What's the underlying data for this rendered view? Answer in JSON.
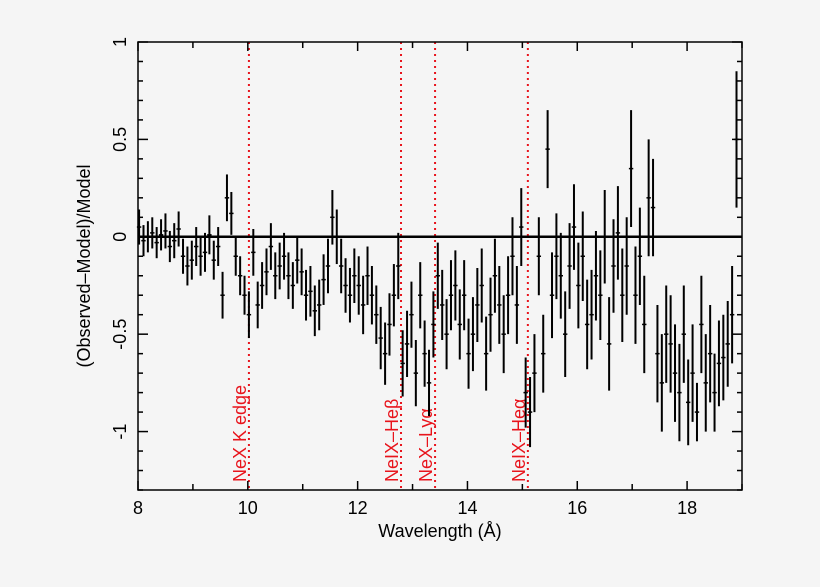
{
  "chart_data": {
    "type": "scatter",
    "title": "",
    "xlabel": "Wavelength (Å)",
    "ylabel": "(Observed–Model)/Model",
    "xlim": [
      8,
      19
    ],
    "ylim": [
      -1.3,
      1
    ],
    "xticks": [
      8,
      10,
      12,
      14,
      16,
      18
    ],
    "yticks": [
      1,
      0.5,
      0,
      -0.5,
      -1
    ],
    "grid": false,
    "reference_line_y": 0,
    "colors": {
      "points": "#000000",
      "annotations": "#e8141c",
      "background": "#f5f5f5"
    },
    "annotations": [
      {
        "x": 10.02,
        "label": "NeX K edge"
      },
      {
        "x": 12.79,
        "label": "NeIX–Heβ"
      },
      {
        "x": 13.41,
        "label": "NeX–Lyα"
      },
      {
        "x": 15.1,
        "label": "NeIX–Heα"
      }
    ],
    "points_format": [
      "wavelength",
      "residual",
      "error"
    ],
    "points": [
      [
        8.02,
        0.05,
        0.09
      ],
      [
        8.1,
        -0.02,
        0.08
      ],
      [
        8.18,
        0.0,
        0.08
      ],
      [
        8.26,
        0.02,
        0.08
      ],
      [
        8.34,
        -0.03,
        0.08
      ],
      [
        8.42,
        0.01,
        0.08
      ],
      [
        8.5,
        0.03,
        0.09
      ],
      [
        8.58,
        -0.05,
        0.08
      ],
      [
        8.66,
        -0.02,
        0.09
      ],
      [
        8.74,
        0.04,
        0.09
      ],
      [
        8.82,
        -0.1,
        0.09
      ],
      [
        8.9,
        -0.15,
        0.1
      ],
      [
        8.98,
        -0.12,
        0.1
      ],
      [
        9.06,
        -0.05,
        0.1
      ],
      [
        9.14,
        -0.1,
        0.1
      ],
      [
        9.22,
        -0.08,
        0.1
      ],
      [
        9.3,
        0.01,
        0.1
      ],
      [
        9.38,
        -0.12,
        0.1
      ],
      [
        9.46,
        -0.05,
        0.1
      ],
      [
        9.54,
        -0.3,
        0.12
      ],
      [
        9.62,
        0.2,
        0.12
      ],
      [
        9.7,
        0.12,
        0.11
      ],
      [
        9.78,
        -0.1,
        0.1
      ],
      [
        9.86,
        -0.2,
        0.1
      ],
      [
        9.94,
        -0.3,
        0.1
      ],
      [
        10.02,
        -0.4,
        0.12
      ],
      [
        10.1,
        -0.08,
        0.12
      ],
      [
        10.18,
        -0.35,
        0.12
      ],
      [
        10.26,
        -0.25,
        0.12
      ],
      [
        10.34,
        -0.18,
        0.12
      ],
      [
        10.42,
        -0.05,
        0.12
      ],
      [
        10.5,
        -0.2,
        0.12
      ],
      [
        10.58,
        -0.15,
        0.12
      ],
      [
        10.66,
        -0.1,
        0.12
      ],
      [
        10.74,
        -0.2,
        0.12
      ],
      [
        10.82,
        -0.25,
        0.12
      ],
      [
        10.9,
        -0.12,
        0.12
      ],
      [
        10.98,
        -0.18,
        0.12
      ],
      [
        11.06,
        -0.3,
        0.13
      ],
      [
        11.14,
        -0.28,
        0.13
      ],
      [
        11.22,
        -0.38,
        0.13
      ],
      [
        11.3,
        -0.35,
        0.13
      ],
      [
        11.38,
        -0.22,
        0.13
      ],
      [
        11.46,
        -0.15,
        0.14
      ],
      [
        11.54,
        0.1,
        0.14
      ],
      [
        11.62,
        0.0,
        0.14
      ],
      [
        11.7,
        -0.15,
        0.14
      ],
      [
        11.78,
        -0.25,
        0.14
      ],
      [
        11.86,
        -0.3,
        0.14
      ],
      [
        11.94,
        -0.2,
        0.14
      ],
      [
        12.02,
        -0.25,
        0.15
      ],
      [
        12.1,
        -0.35,
        0.15
      ],
      [
        12.18,
        -0.2,
        0.15
      ],
      [
        12.26,
        -0.3,
        0.15
      ],
      [
        12.34,
        -0.4,
        0.15
      ],
      [
        12.42,
        -0.52,
        0.16
      ],
      [
        12.5,
        -0.6,
        0.16
      ],
      [
        12.58,
        -0.45,
        0.16
      ],
      [
        12.66,
        -0.3,
        0.16
      ],
      [
        12.74,
        -0.15,
        0.17
      ],
      [
        12.82,
        -0.65,
        0.17
      ],
      [
        12.9,
        -0.55,
        0.17
      ],
      [
        12.98,
        -0.4,
        0.17
      ],
      [
        13.06,
        -0.7,
        0.17
      ],
      [
        13.14,
        -0.3,
        0.17
      ],
      [
        13.22,
        -0.6,
        0.17
      ],
      [
        13.3,
        -0.75,
        0.17
      ],
      [
        13.38,
        -0.45,
        0.17
      ],
      [
        13.46,
        -0.2,
        0.17
      ],
      [
        13.54,
        -0.35,
        0.18
      ],
      [
        13.62,
        -0.5,
        0.18
      ],
      [
        13.7,
        -0.3,
        0.18
      ],
      [
        13.78,
        -0.25,
        0.18
      ],
      [
        13.86,
        -0.45,
        0.18
      ],
      [
        13.94,
        -0.3,
        0.18
      ],
      [
        14.02,
        -0.6,
        0.18
      ],
      [
        14.1,
        -0.5,
        0.19
      ],
      [
        14.18,
        -0.35,
        0.19
      ],
      [
        14.26,
        -0.25,
        0.19
      ],
      [
        14.34,
        -0.6,
        0.19
      ],
      [
        14.42,
        -0.4,
        0.19
      ],
      [
        14.5,
        -0.2,
        0.19
      ],
      [
        14.58,
        -0.35,
        0.2
      ],
      [
        14.66,
        -0.5,
        0.2
      ],
      [
        14.74,
        -0.3,
        0.2
      ],
      [
        14.82,
        -0.1,
        0.2
      ],
      [
        14.9,
        -0.35,
        0.2
      ],
      [
        14.98,
        0.05,
        0.2
      ],
      [
        15.06,
        -0.8,
        0.18
      ],
      [
        15.14,
        -0.9,
        0.18
      ],
      [
        15.22,
        -0.7,
        0.2
      ],
      [
        15.3,
        -0.1,
        0.2
      ],
      [
        15.38,
        -0.6,
        0.2
      ],
      [
        15.46,
        0.45,
        0.2
      ],
      [
        15.54,
        -0.3,
        0.22
      ],
      [
        15.62,
        -0.1,
        0.22
      ],
      [
        15.7,
        -0.2,
        0.22
      ],
      [
        15.78,
        -0.5,
        0.22
      ],
      [
        15.86,
        -0.15,
        0.22
      ],
      [
        15.94,
        0.05,
        0.22
      ],
      [
        16.02,
        -0.25,
        0.22
      ],
      [
        16.1,
        -0.1,
        0.23
      ],
      [
        16.18,
        -0.45,
        0.23
      ],
      [
        16.26,
        -0.4,
        0.23
      ],
      [
        16.34,
        -0.2,
        0.23
      ],
      [
        16.42,
        -0.3,
        0.23
      ],
      [
        16.5,
        0.0,
        0.24
      ],
      [
        16.58,
        -0.55,
        0.24
      ],
      [
        16.66,
        -0.15,
        0.24
      ],
      [
        16.74,
        0.02,
        0.24
      ],
      [
        16.82,
        -0.3,
        0.24
      ],
      [
        16.9,
        -0.15,
        0.25
      ],
      [
        16.98,
        0.35,
        0.3
      ],
      [
        17.06,
        -0.3,
        0.25
      ],
      [
        17.14,
        -0.1,
        0.25
      ],
      [
        17.22,
        -0.45,
        0.25
      ],
      [
        17.3,
        0.2,
        0.3
      ],
      [
        17.38,
        0.15,
        0.25
      ],
      [
        17.46,
        -0.6,
        0.25
      ],
      [
        17.54,
        -0.75,
        0.25
      ],
      [
        17.62,
        -0.5,
        0.25
      ],
      [
        17.7,
        -0.55,
        0.25
      ],
      [
        17.78,
        -0.7,
        0.25
      ],
      [
        17.86,
        -0.8,
        0.25
      ],
      [
        17.94,
        -0.5,
        0.25
      ],
      [
        18.02,
        -0.85,
        0.22
      ],
      [
        18.1,
        -0.7,
        0.25
      ],
      [
        18.18,
        -0.9,
        0.15
      ],
      [
        18.26,
        -0.45,
        0.25
      ],
      [
        18.34,
        -0.75,
        0.25
      ],
      [
        18.42,
        -0.6,
        0.25
      ],
      [
        18.5,
        -0.8,
        0.2
      ],
      [
        18.58,
        -0.65,
        0.22
      ],
      [
        18.66,
        -0.62,
        0.22
      ],
      [
        18.74,
        -0.55,
        0.22
      ],
      [
        18.82,
        -0.4,
        0.25
      ],
      [
        18.9,
        0.5,
        0.35
      ]
    ]
  }
}
